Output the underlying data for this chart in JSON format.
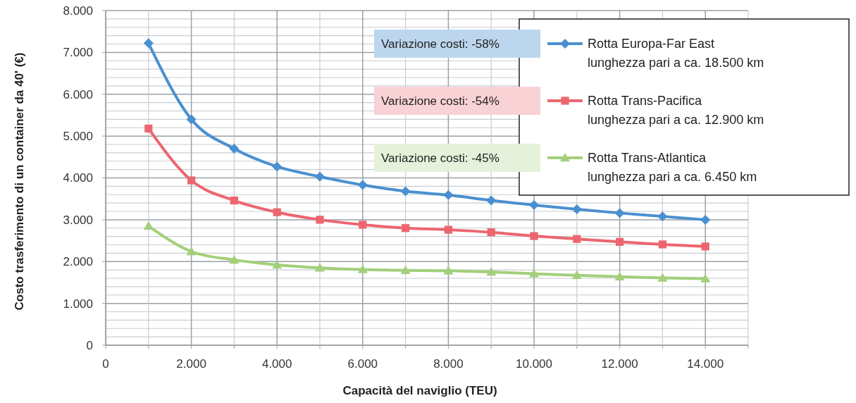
{
  "chart_data": {
    "type": "line",
    "xlabel": "Capacità del naviglio (TEU)",
    "ylabel": "Costo trasferimento di un container da  40' (€)",
    "x": [
      1000,
      2000,
      3000,
      4000,
      5000,
      6000,
      7000,
      8000,
      9000,
      10000,
      11000,
      12000,
      13000,
      14000
    ],
    "series": [
      {
        "name": "Rotta Europa-Far East\nlunghezza pari a ca. 18.500 km",
        "color": "#4a90d0",
        "marker": "diamond",
        "values": [
          7220,
          5400,
          4700,
          4270,
          4030,
          3830,
          3680,
          3590,
          3460,
          3350,
          3250,
          3160,
          3080,
          3000
        ]
      },
      {
        "name": "Rotta Trans-Pacifica\nlunghezza pari a ca. 12.900 km",
        "color": "#ec6670",
        "marker": "square",
        "values": [
          5180,
          3940,
          3460,
          3180,
          3000,
          2880,
          2800,
          2760,
          2700,
          2610,
          2540,
          2470,
          2410,
          2360
        ]
      },
      {
        "name": "Rotta Trans-Atlantica\nlunghezza pari a ca. 6.450 km",
        "color": "#a3cf7a",
        "marker": "triangle",
        "values": [
          2850,
          2240,
          2040,
          1920,
          1850,
          1810,
          1790,
          1780,
          1750,
          1710,
          1670,
          1640,
          1610,
          1590
        ]
      }
    ],
    "annotations": [
      "Variazione costi: -58%",
      "Variazione costi: -54%",
      "Variazione costi: -45%"
    ],
    "xlim": [
      0,
      15000
    ],
    "xticks": [
      0,
      {
        "value": 1000,
        "label": null
      },
      {
        "value": 2000,
        "label": "2.000"
      },
      {
        "value": 3000,
        "label": null
      },
      {
        "value": 4000,
        "label": "4.000"
      },
      {
        "value": 5000,
        "label": null
      },
      {
        "value": 6000,
        "label": "6.000"
      },
      {
        "value": 7000,
        "label": null
      },
      {
        "value": 8000,
        "label": "8.000"
      },
      {
        "value": 9000,
        "label": null
      },
      {
        "value": 10000,
        "label": "10.000"
      },
      {
        "value": 11000,
        "label": null
      },
      {
        "value": 12000,
        "label": "12.000"
      },
      {
        "value": 13000,
        "label": null
      },
      {
        "value": 14000,
        "label": "14.000"
      },
      {
        "value": 15000,
        "label": null
      }
    ],
    "ylim": [
      0,
      8000
    ],
    "yticks": [
      0,
      {
        "value": 200,
        "label": null
      },
      {
        "value": 400,
        "label": null
      },
      {
        "value": 600,
        "label": null
      },
      {
        "value": 800,
        "label": null
      },
      {
        "value": 1000,
        "label": "1.000"
      },
      {
        "value": 1200,
        "label": null
      },
      {
        "value": 1400,
        "label": null
      },
      {
        "value": 1600,
        "label": null
      },
      {
        "value": 1800,
        "label": null
      },
      {
        "value": 2000,
        "label": "2.000"
      },
      {
        "value": 2200,
        "label": null
      },
      {
        "value": 2400,
        "label": null
      },
      {
        "value": 2600,
        "label": null
      },
      {
        "value": 2800,
        "label": null
      },
      {
        "value": 3000,
        "label": "3.000"
      },
      {
        "value": 3200,
        "label": null
      },
      {
        "value": 3400,
        "label": null
      },
      {
        "value": 3600,
        "label": null
      },
      {
        "value": 3800,
        "label": null
      },
      {
        "value": 4000,
        "label": "4.000"
      },
      {
        "value": 4200,
        "label": null
      },
      {
        "value": 4400,
        "label": null
      },
      {
        "value": 4600,
        "label": null
      },
      {
        "value": 4800,
        "label": null
      },
      {
        "value": 5000,
        "label": "5.000"
      },
      {
        "value": 5200,
        "label": null
      },
      {
        "value": 5400,
        "label": null
      },
      {
        "value": 5600,
        "label": null
      },
      {
        "value": 5800,
        "label": null
      },
      {
        "value": 6000,
        "label": "6.000"
      },
      {
        "value": 6200,
        "label": null
      },
      {
        "value": 6400,
        "label": null
      },
      {
        "value": 6600,
        "label": null
      },
      {
        "value": 6800,
        "label": null
      },
      {
        "value": 7000,
        "label": "7.000"
      },
      {
        "value": 7200,
        "label": null
      },
      {
        "value": 7400,
        "label": null
      },
      {
        "value": 7600,
        "label": null
      },
      {
        "value": 7800,
        "label": null
      },
      {
        "value": 8000,
        "label": "8.000"
      }
    ],
    "grid": true,
    "legend": "top right"
  }
}
